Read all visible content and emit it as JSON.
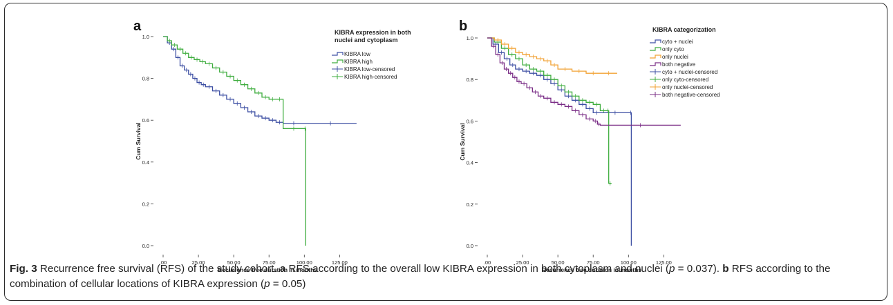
{
  "caption": {
    "fig_label": "Fig. 3",
    "title": "Recurrence free survival (RFS) of the study cohort.",
    "a_label": "a",
    "a_text_1": "RFS according to the overall low KIBRA expression in both cytoplasm and nuclei (",
    "p_symbol": "p",
    "a_text_2": " = 0.037).",
    "b_label": "b",
    "b_text_1": "RFS according to the combination of cellular locations of KIBRA expression (",
    "b_text_2": " = 0.05)"
  },
  "colors": {
    "kibra_low": "#3d4fa3",
    "kibra_high": "#3fad3f",
    "cyto_nuclei": "#3d4fa3",
    "only_cyto": "#3fad3f",
    "only_nuclei": "#f2a233",
    "both_negative": "#7a2d86"
  },
  "chart_data": [
    {
      "type": "line",
      "panel_label": "a",
      "xlabel": "Recurrence free duration in months",
      "ylabel": "Cum Survival",
      "xlim": [
        0,
        140
      ],
      "ylim": [
        0,
        1.0
      ],
      "xticks": [
        0,
        25,
        50,
        75,
        100,
        125
      ],
      "xtick_labels": [
        ".00",
        "25.00",
        "50.00",
        "75.00",
        "100.00",
        "125.00"
      ],
      "yticks": [
        0,
        0.2,
        0.4,
        0.6,
        0.8,
        1.0
      ],
      "ytick_labels": [
        "0.0",
        "0.2",
        "0.4",
        "0.6",
        "0.8",
        "1.0"
      ],
      "legend_title": [
        "KIBRA expression in both",
        "nuclei and cytoplasm"
      ],
      "legend_position": "top-right",
      "legend": [
        "KIBRA low",
        "KIBRA high",
        "KIBRA low-censored",
        "KIBRA high-censored"
      ],
      "series": [
        {
          "name": "KIBRA low",
          "color_key": "kibra_low",
          "x": [
            0,
            3,
            6,
            9,
            12,
            15,
            18,
            21,
            24,
            27,
            30,
            35,
            40,
            45,
            50,
            55,
            60,
            65,
            70,
            75,
            80,
            85,
            100,
            137
          ],
          "y": [
            1.0,
            0.97,
            0.94,
            0.9,
            0.86,
            0.84,
            0.82,
            0.8,
            0.78,
            0.77,
            0.76,
            0.74,
            0.72,
            0.7,
            0.68,
            0.66,
            0.64,
            0.62,
            0.61,
            0.6,
            0.59,
            0.585,
            0.585,
            0.585
          ]
        },
        {
          "name": "KIBRA high",
          "color_key": "kibra_high",
          "x": [
            0,
            3,
            6,
            10,
            14,
            18,
            22,
            26,
            30,
            35,
            40,
            45,
            50,
            55,
            60,
            65,
            70,
            75,
            80,
            85,
            100,
            101
          ],
          "y": [
            1.0,
            0.98,
            0.96,
            0.94,
            0.92,
            0.9,
            0.89,
            0.88,
            0.87,
            0.85,
            0.83,
            0.81,
            0.79,
            0.77,
            0.75,
            0.73,
            0.71,
            0.7,
            0.7,
            0.56,
            0.56,
            0.0
          ]
        }
      ]
    },
    {
      "type": "line",
      "panel_label": "b",
      "xlabel": "Recurrence free duration in months",
      "ylabel": "Cum Survival",
      "xlim": [
        0,
        140
      ],
      "ylim": [
        0,
        1.0
      ],
      "xticks": [
        0,
        25,
        50,
        75,
        100,
        125
      ],
      "xtick_labels": [
        ".00",
        "25.00",
        "50.00",
        "75.00",
        "100.00",
        "125.00"
      ],
      "yticks": [
        0,
        0.2,
        0.4,
        0.6,
        0.8,
        1.0
      ],
      "ytick_labels": [
        "0.0",
        "0.2",
        "0.4",
        "0.6",
        "0.8",
        "1.0"
      ],
      "legend_title": [
        "KIBRA categorization"
      ],
      "legend_position": "top-right",
      "legend": [
        "cyto + nuclei",
        "only cyto",
        "only nuclei",
        "both negative",
        "cyto + nuclei-censored",
        "only cyto-censored",
        "only nuclei-censored",
        "both negative-censored"
      ],
      "series": [
        {
          "name": "cyto + nuclei",
          "color_key": "cyto_nuclei",
          "x": [
            0,
            4,
            8,
            12,
            16,
            20,
            25,
            30,
            35,
            40,
            45,
            50,
            55,
            60,
            65,
            70,
            75,
            80,
            101,
            102
          ],
          "y": [
            1.0,
            0.97,
            0.93,
            0.9,
            0.87,
            0.85,
            0.84,
            0.83,
            0.82,
            0.8,
            0.78,
            0.75,
            0.72,
            0.7,
            0.68,
            0.66,
            0.64,
            0.64,
            0.64,
            0.0
          ]
        },
        {
          "name": "only cyto",
          "color_key": "only_cyto",
          "x": [
            0,
            5,
            10,
            15,
            20,
            25,
            30,
            35,
            40,
            45,
            50,
            55,
            60,
            65,
            70,
            75,
            80,
            85,
            86,
            88
          ],
          "y": [
            1.0,
            0.98,
            0.95,
            0.92,
            0.9,
            0.87,
            0.85,
            0.84,
            0.82,
            0.8,
            0.77,
            0.74,
            0.72,
            0.7,
            0.69,
            0.68,
            0.65,
            0.65,
            0.3,
            0.3
          ]
        },
        {
          "name": "only nuclei",
          "color_key": "only_nuclei",
          "x": [
            0,
            5,
            10,
            15,
            20,
            25,
            30,
            35,
            40,
            45,
            50,
            60,
            70,
            80,
            92
          ],
          "y": [
            1.0,
            0.99,
            0.97,
            0.95,
            0.93,
            0.92,
            0.91,
            0.9,
            0.89,
            0.87,
            0.85,
            0.84,
            0.83,
            0.83,
            0.83
          ]
        },
        {
          "name": "both negative",
          "color_key": "both_negative",
          "x": [
            0,
            3,
            6,
            9,
            12,
            15,
            18,
            21,
            24,
            28,
            32,
            36,
            40,
            45,
            50,
            55,
            60,
            65,
            70,
            75,
            78,
            80,
            137
          ],
          "y": [
            1.0,
            0.96,
            0.92,
            0.88,
            0.85,
            0.83,
            0.81,
            0.79,
            0.78,
            0.76,
            0.74,
            0.72,
            0.71,
            0.69,
            0.68,
            0.67,
            0.65,
            0.63,
            0.61,
            0.6,
            0.585,
            0.58,
            0.58
          ]
        }
      ]
    }
  ]
}
